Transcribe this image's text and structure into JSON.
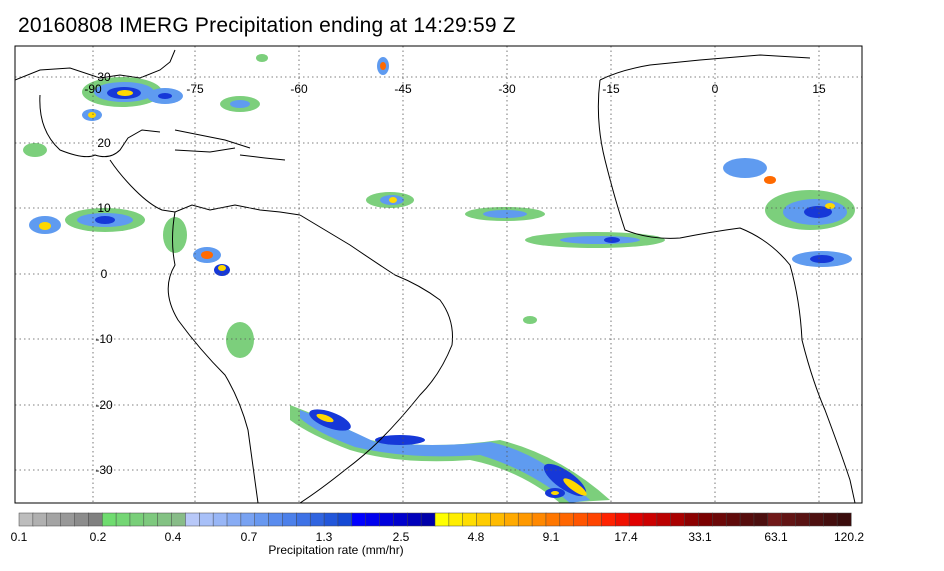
{
  "title": "20160808 IMERG Precipitation ending at 14:29:59 Z",
  "map": {
    "projection": "cylindrical equidistant",
    "lon_range": [
      -98,
      29
    ],
    "lat_range": [
      -36,
      39
    ],
    "gridlines": "dotted",
    "lon_ticks": [
      "-90",
      "-75",
      "-60",
      "-45",
      "-30",
      "-15",
      "0",
      "15"
    ],
    "lat_ticks": [
      "30",
      "20",
      "10",
      "0",
      "-10",
      "-20",
      "-30"
    ]
  },
  "colorbar": {
    "title": "Precipitation rate (mm/hr)",
    "labels": [
      "0.1",
      "0.2",
      "0.4",
      "0.7",
      "1.3",
      "2.5",
      "4.8",
      "9.1",
      "17.4",
      "33.1",
      "63.1",
      "120.2"
    ],
    "colors": [
      "#bdbdbd",
      "#b0b0b0",
      "#a4a4a4",
      "#989898",
      "#8c8c8c",
      "#808080",
      "#6fdc6f",
      "#74d674",
      "#79cf79",
      "#7ec97e",
      "#83c283",
      "#88bc88",
      "#b8c8f8",
      "#a8c0f8",
      "#98b6f6",
      "#88acf4",
      "#78a2f2",
      "#6898f0",
      "#5a8cee",
      "#4c80ea",
      "#3e72e6",
      "#3064e0",
      "#2256da",
      "#1448d4",
      "#0000ff",
      "#0000ee",
      "#0000dd",
      "#0000cc",
      "#0000bb",
      "#0000aa",
      "#ffff00",
      "#ffee00",
      "#ffdd00",
      "#ffcc00",
      "#ffbb00",
      "#ffaa00",
      "#ff9900",
      "#ff8800",
      "#ff7700",
      "#ff6600",
      "#ff5500",
      "#ff4400",
      "#ff2200",
      "#f01000",
      "#e00000",
      "#cc0000",
      "#bb0000",
      "#aa0000",
      "#8c0000",
      "#7a0000",
      "#6c0808",
      "#600a0a",
      "#560c0c",
      "#4c0e0e",
      "#701818",
      "#621414",
      "#581212",
      "#4e1010",
      "#440e0e",
      "#3a0c0c"
    ]
  },
  "precip_colors": {
    "light": "#7ccf7c",
    "moderate": "#5f9bf0",
    "heavy": "#1638d8",
    "intense": "#ffd800",
    "very_intense": "#ff6a00",
    "extreme": "#cc0000"
  }
}
